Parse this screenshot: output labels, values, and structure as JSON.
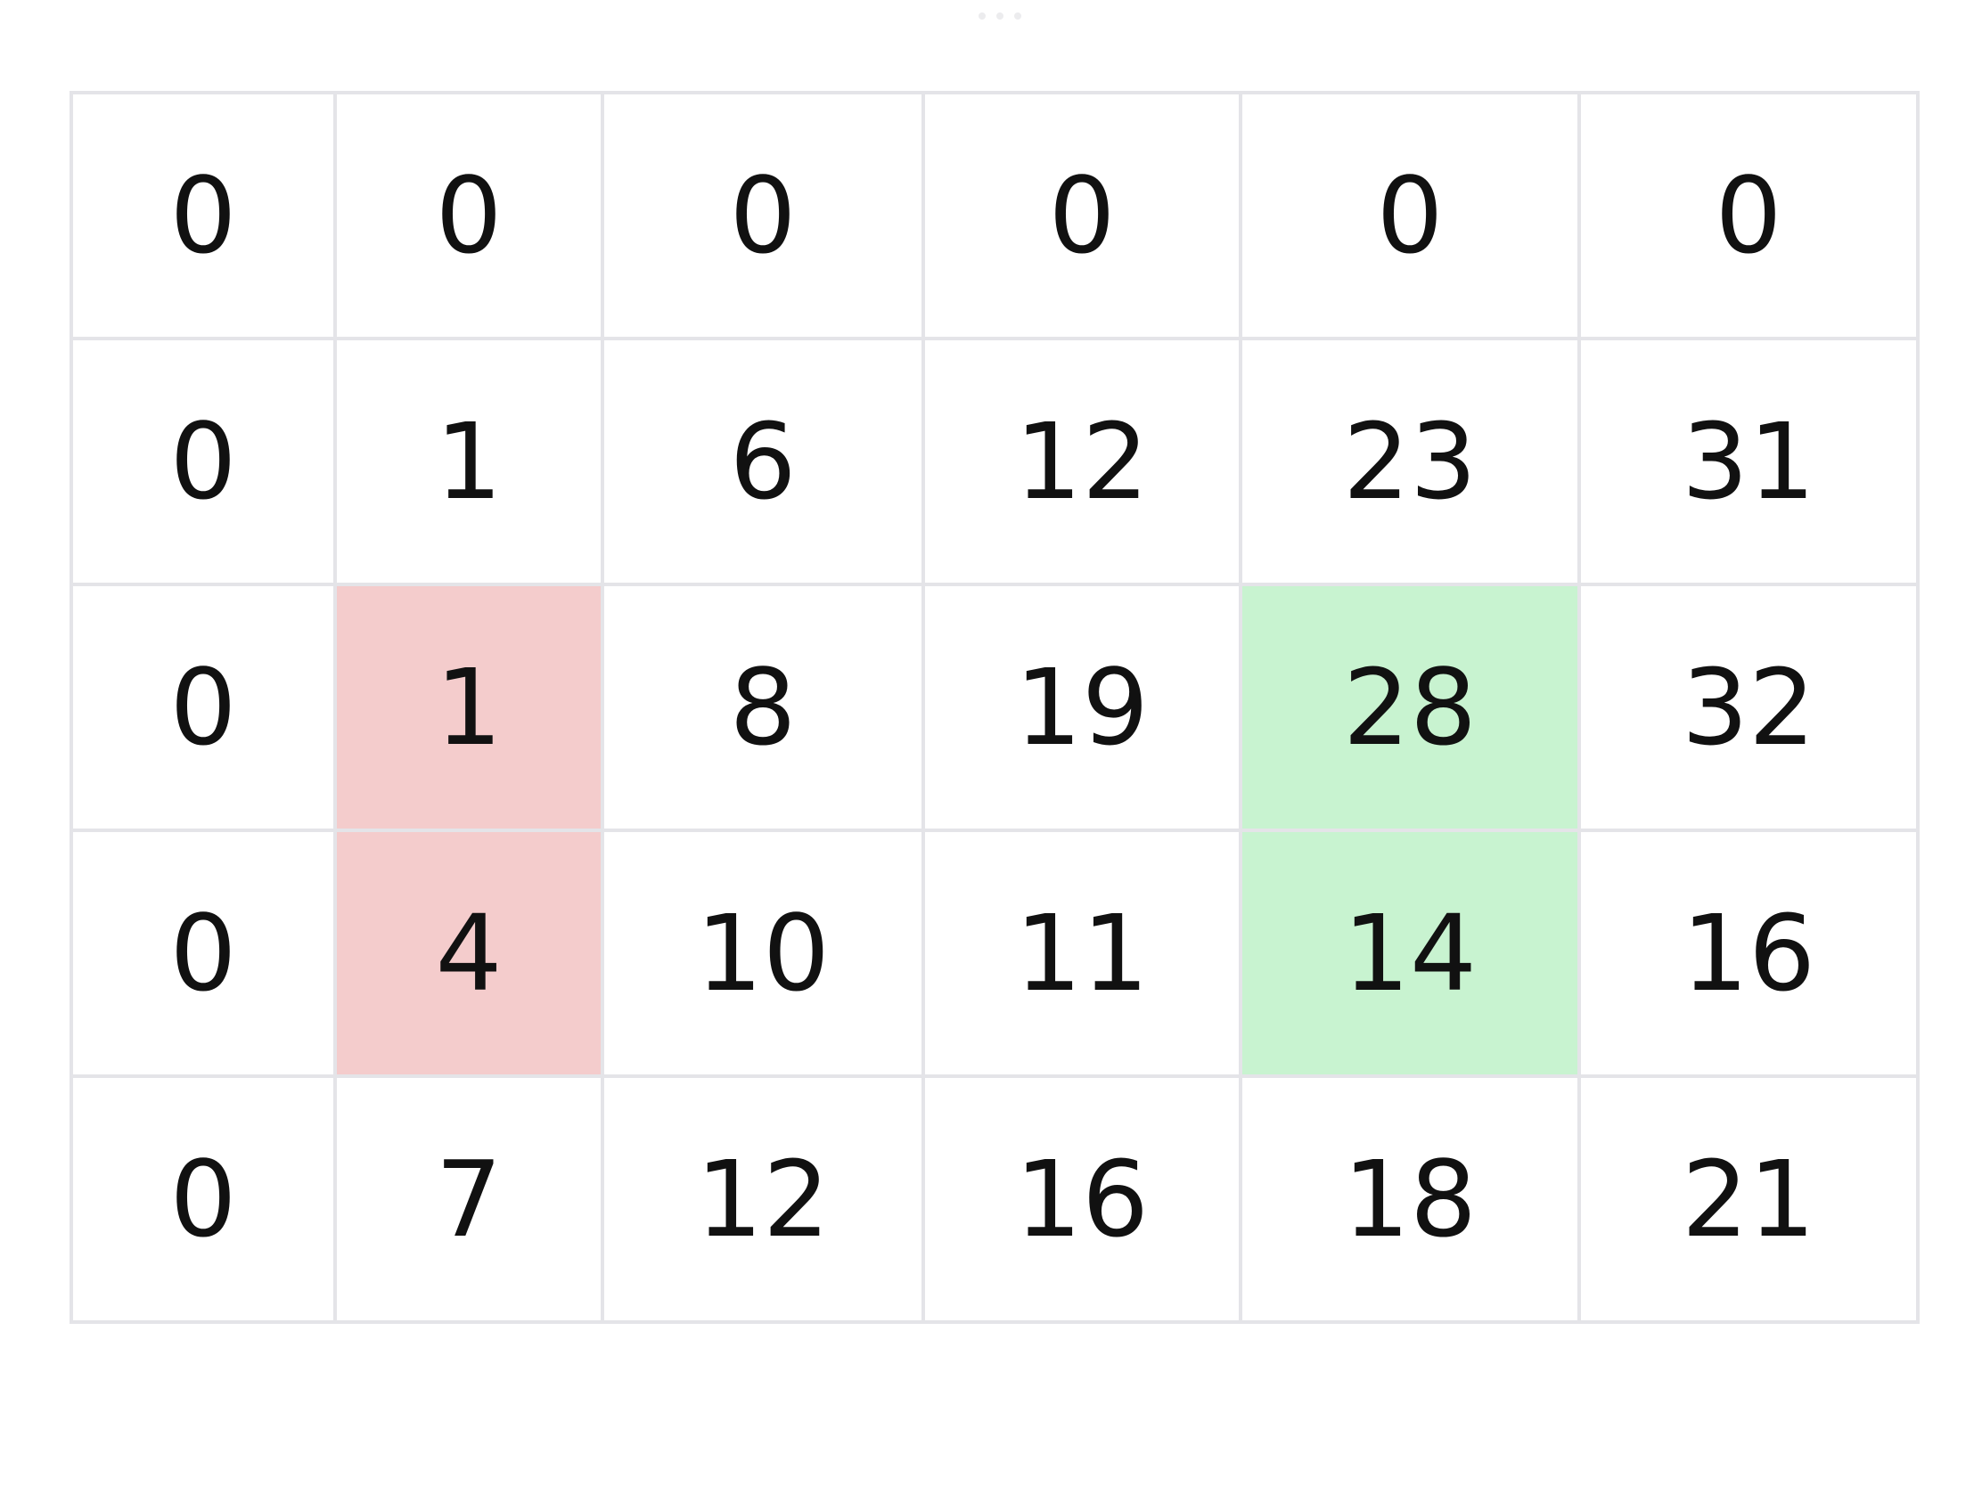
{
  "grid": {
    "rows": [
      [
        "0",
        "0",
        "0",
        "0",
        "0",
        "0"
      ],
      [
        "0",
        "1",
        "6",
        "12",
        "23",
        "31"
      ],
      [
        "0",
        "1",
        "8",
        "19",
        "28",
        "32"
      ],
      [
        "0",
        "4",
        "10",
        "11",
        "14",
        "16"
      ],
      [
        "0",
        "7",
        "12",
        "16",
        "18",
        "21"
      ]
    ],
    "highlight_colors": {
      "removed": "#f4cccc",
      "added": "#c8f3d0",
      "border": "#e4e4e8"
    }
  }
}
